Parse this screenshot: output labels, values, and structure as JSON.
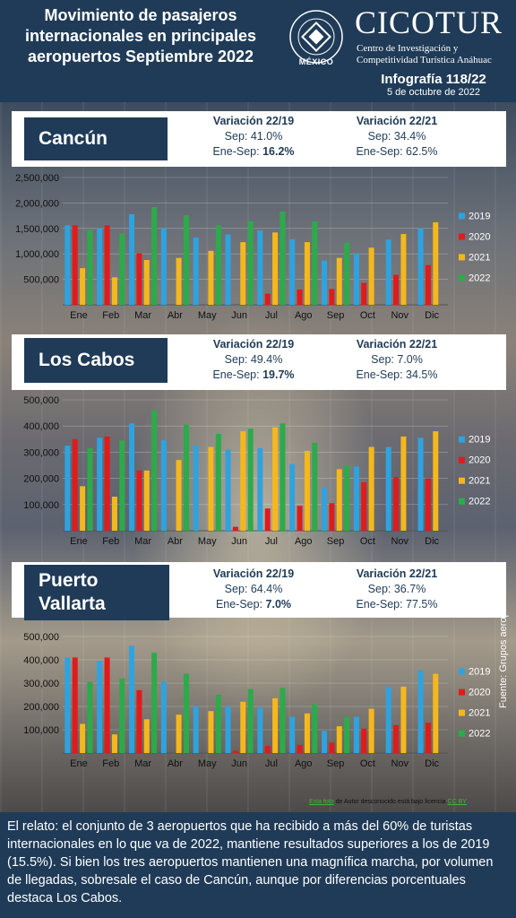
{
  "header": {
    "title": "Movimiento de pasajeros internacionales en principales aeropuertos Septiembre 2022",
    "seal_text": "UNIVERSIDAD ANÁHUAC · VINCE IN BONO MALUM",
    "seal_label": "MÉXICO",
    "brand": "CICOTUR",
    "brand_sub_1": "Centro de Investigación y",
    "brand_sub_2": "Competitividad Turística Anáhuac",
    "infografia": "Infografía 118/22",
    "date": "5 de octubre de 2022"
  },
  "colors": {
    "2019": "#2ea3e0",
    "2020": "#e01b1b",
    "2021": "#f5b81c",
    "2022": "#2bab4a",
    "navy": "#1f3b57"
  },
  "source_note": "Fuente: Grupos aeroportuarios",
  "credit": {
    "link": "Esta foto",
    "text": "de Autor desconocido está bajo licencia",
    "license": "CC BY"
  },
  "footer_text": "El relato: el conjunto de 3 aeropuertos que ha recibido a más del 60% de turistas internacionales en lo que va de 2022, mantiene resultados superiores a los de 2019 (15.5%). Si bien los tres aeropuertos mantienen una magnífica marcha, por volumen de llegadas, sobresale el caso de Cancún, aunque por diferencias porcentuales destaca Los Cabos.",
  "panels": [
    {
      "city_line1": "Cancún",
      "city_line2": "",
      "var1": {
        "header": "Variación 22/19",
        "sep": "Sep: 41.0%",
        "ene_sep_label": "Ene-Sep:",
        "ene_sep_value": "16.2%"
      },
      "var2": {
        "header": "Variación 22/21",
        "sep": "Sep: 34.4%",
        "ene_sep": "Ene-Sep: 62.5%"
      }
    },
    {
      "city_line1": "Los Cabos",
      "city_line2": "",
      "var1": {
        "header": "Variación 22/19",
        "sep": "Sep: 49.4%",
        "ene_sep_label": "Ene-Sep:",
        "ene_sep_value": "19.7%"
      },
      "var2": {
        "header": "Variación 22/21",
        "sep": "Sep: 7.0%",
        "ene_sep": "Ene-Sep: 34.5%"
      }
    },
    {
      "city_line1": "Puerto",
      "city_line2": "Vallarta",
      "var1": {
        "header": "Variación 22/19",
        "sep": "Sep: 64.4%",
        "ene_sep_label": "Ene-Sep:",
        "ene_sep_value": "7.0%"
      },
      "var2": {
        "header": "Variación 22/21",
        "sep": "Sep: 36.7%",
        "ene_sep": "Ene-Sep: 77.5%"
      }
    }
  ],
  "chart_data": [
    {
      "type": "bar",
      "categories": [
        "Ene",
        "Feb",
        "Mar",
        "Abr",
        "May",
        "Jun",
        "Jul",
        "Ago",
        "Sep",
        "Oct",
        "Nov",
        "Dic"
      ],
      "ylim": [
        0,
        2500000
      ],
      "yticks": [
        "500,000",
        "1,000,000",
        "1,500,000",
        "2,000,000",
        "2,500,000"
      ],
      "legend_position": "right",
      "series": [
        {
          "name": "2019",
          "values": [
            1560000,
            1500000,
            1780000,
            1500000,
            1320000,
            1380000,
            1460000,
            1290000,
            870000,
            1000000,
            1280000,
            1500000
          ]
        },
        {
          "name": "2020",
          "values": [
            1560000,
            1560000,
            1010000,
            0,
            0,
            0,
            220000,
            300000,
            310000,
            430000,
            590000,
            780000
          ]
        },
        {
          "name": "2021",
          "values": [
            720000,
            540000,
            880000,
            920000,
            1060000,
            1230000,
            1420000,
            1230000,
            920000,
            1120000,
            1390000,
            1620000
          ]
        },
        {
          "name": "2022",
          "values": [
            1470000,
            1400000,
            1920000,
            1760000,
            1560000,
            1640000,
            1830000,
            1640000,
            1220000,
            0,
            0,
            0
          ]
        }
      ]
    },
    {
      "type": "bar",
      "categories": [
        "Ene",
        "Feb",
        "Mar",
        "Abr",
        "May",
        "Jun",
        "Jul",
        "Ago",
        "Sep",
        "Oct",
        "Nov",
        "Dic"
      ],
      "ylim": [
        0,
        500000
      ],
      "yticks": [
        "100,000",
        "200,000",
        "300,000",
        "400,000",
        "500,000"
      ],
      "legend_position": "right",
      "series": [
        {
          "name": "2019",
          "values": [
            325000,
            355000,
            410000,
            345000,
            325000,
            310000,
            315000,
            255000,
            165000,
            245000,
            320000,
            355000
          ]
        },
        {
          "name": "2020",
          "values": [
            350000,
            360000,
            230000,
            0,
            0,
            15000,
            85000,
            95000,
            105000,
            185000,
            205000,
            200000
          ]
        },
        {
          "name": "2021",
          "values": [
            170000,
            130000,
            230000,
            270000,
            320000,
            380000,
            395000,
            305000,
            235000,
            320000,
            360000,
            380000
          ]
        },
        {
          "name": "2022",
          "values": [
            315000,
            345000,
            460000,
            405000,
            370000,
            390000,
            410000,
            335000,
            250000,
            0,
            0,
            0
          ]
        }
      ]
    },
    {
      "type": "bar",
      "categories": [
        "Ene",
        "Feb",
        "Mar",
        "Abr",
        "May",
        "Jun",
        "Jul",
        "Ago",
        "Sep",
        "Oct",
        "Nov",
        "Dic"
      ],
      "ylim": [
        0,
        500000
      ],
      "yticks": [
        "100,000",
        "200,000",
        "300,000",
        "400,000",
        "500,000"
      ],
      "legend_position": "right",
      "series": [
        {
          "name": "2019",
          "values": [
            410000,
            395000,
            460000,
            305000,
            200000,
            200000,
            195000,
            155000,
            95000,
            155000,
            285000,
            355000
          ]
        },
        {
          "name": "2020",
          "values": [
            410000,
            410000,
            270000,
            0,
            0,
            10000,
            30000,
            35000,
            45000,
            105000,
            120000,
            130000
          ]
        },
        {
          "name": "2021",
          "values": [
            125000,
            80000,
            145000,
            165000,
            180000,
            220000,
            235000,
            170000,
            115000,
            190000,
            285000,
            340000
          ]
        },
        {
          "name": "2022",
          "values": [
            305000,
            320000,
            430000,
            340000,
            250000,
            275000,
            280000,
            210000,
            155000,
            0,
            0,
            0
          ]
        }
      ]
    }
  ]
}
